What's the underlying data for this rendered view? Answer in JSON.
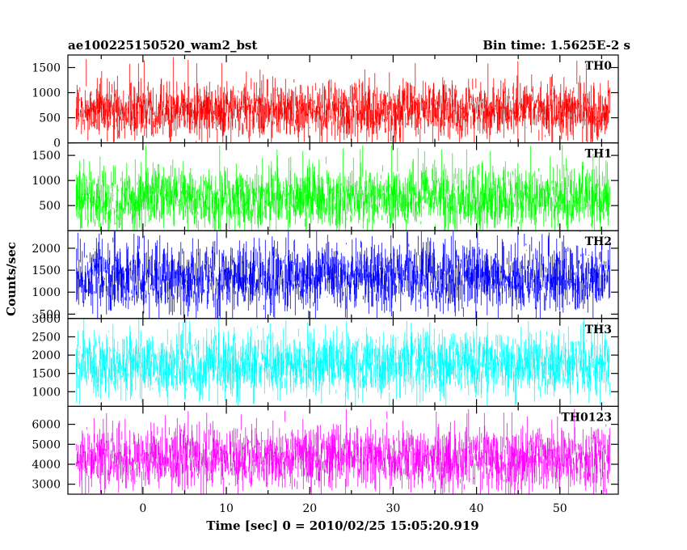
{
  "chart_data": {
    "type": "line",
    "title_left": "ae100225150520_wam2_bst",
    "title_right": "Bin time: 1.5625E-2 s",
    "xlabel": "Time [sec] 0 = 2010/02/25 15:05:20.919",
    "ylabel": "Counts/sec",
    "xlim": [
      -9,
      57
    ],
    "data_xrange": [
      -8,
      56
    ],
    "x_ticks": [
      0,
      10,
      20,
      30,
      40,
      50
    ],
    "x_tick_labels": [
      "0",
      "10",
      "20",
      "30",
      "40",
      "50"
    ],
    "grid": false,
    "panels": [
      {
        "label": "TH0",
        "color": "#ff0000",
        "ylim": [
          0,
          1750
        ],
        "y_ticks": [
          0,
          500,
          1000,
          1500
        ],
        "y_tick_labels": [
          "0",
          "500",
          "1000",
          "1500"
        ],
        "mean": 650,
        "typical_min": 100,
        "typical_max": 1300,
        "peak_max": 1720
      },
      {
        "label": "TH1",
        "color": "#00ff00",
        "ylim": [
          0,
          1750
        ],
        "y_ticks": [
          500,
          1000,
          1500
        ],
        "y_tick_labels": [
          "500",
          "1000",
          "1500"
        ],
        "mean": 650,
        "typical_min": 100,
        "typical_max": 1400,
        "peak_max": 1720
      },
      {
        "label": "TH2",
        "color": "#0000ff",
        "ylim": [
          400,
          2400
        ],
        "y_ticks": [
          500,
          1000,
          1500,
          2000
        ],
        "y_tick_labels": [
          "500",
          "1000",
          "1500",
          "2000"
        ],
        "mean": 1350,
        "typical_min": 550,
        "typical_max": 2250,
        "peak_max": 2400
      },
      {
        "label": "TH3",
        "color": "#00ffff",
        "ylim": [
          600,
          3000
        ],
        "y_ticks": [
          1000,
          1500,
          2000,
          2500,
          3000
        ],
        "y_tick_labels": [
          "1000",
          "1500",
          "2000",
          "2500",
          "3000"
        ],
        "mean": 1750,
        "typical_min": 900,
        "typical_max": 2700,
        "peak_max": 3000
      },
      {
        "label": "TH0123",
        "color": "#ff00ff",
        "ylim": [
          2500,
          6900
        ],
        "y_ticks": [
          3000,
          4000,
          5000,
          6000
        ],
        "y_tick_labels": [
          "3000",
          "4000",
          "5000",
          "6000"
        ],
        "mean": 4300,
        "typical_min": 2900,
        "typical_max": 6200,
        "peak_max": 6800
      }
    ]
  }
}
